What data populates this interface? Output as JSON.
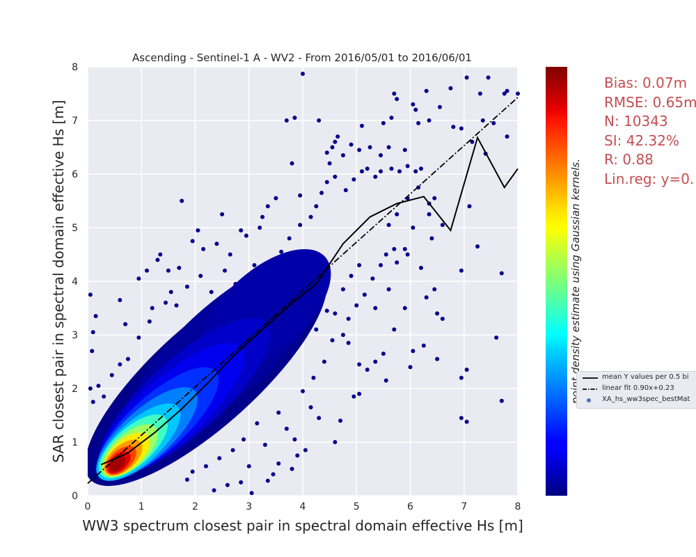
{
  "chart_data": {
    "type": "scatter",
    "title": "Ascending - Sentinel-1 A - WV2 - From 2016/05/01 to 2016/06/01",
    "xlabel": "WW3 spectrum closest pair in spectral domain effective Hs [m]",
    "ylabel": "SAR closest pair in spectral domain effective Hs [m]",
    "xlim": [
      0,
      8
    ],
    "ylim": [
      0,
      8
    ],
    "xticks": [
      "0",
      "1",
      "2",
      "3",
      "4",
      "5",
      "6",
      "7",
      "8"
    ],
    "yticks": [
      "0",
      "1",
      "2",
      "3",
      "4",
      "5",
      "6",
      "7",
      "8"
    ],
    "grid": true,
    "colorbar_label": "point density estimate using Gaussian kernels.",
    "colormap": "jet",
    "stats": [
      "Bias: 0.07m",
      "RMSE: 0.65m",
      "N: 10343",
      "SI: 42.32%",
      "R: 0.88",
      "Lin.reg: y=0."
    ],
    "legend": {
      "placement": "right, outside",
      "entries": [
        "mean Y values per 0.5 bi",
        "linear fit 0.90x+0.23",
        "XA_hs_ww3spec_bestMat"
      ]
    },
    "mean_line": {
      "x": [
        0.25,
        0.75,
        1.25,
        1.75,
        2.25,
        2.75,
        3.25,
        3.75,
        4.25,
        4.75,
        5.25,
        5.75,
        6.25,
        6.75,
        7.25,
        7.75,
        8.0
      ],
      "y": [
        0.58,
        0.8,
        1.18,
        1.62,
        2.12,
        2.65,
        3.1,
        3.55,
        3.95,
        4.7,
        5.2,
        5.45,
        5.58,
        4.95,
        6.68,
        5.75,
        6.1
      ]
    },
    "linear_fit": {
      "slope": 0.9,
      "intercept": 0.23
    },
    "outliers": [
      [
        0.05,
        3.75
      ],
      [
        0.1,
        3.05
      ],
      [
        0.15,
        3.35
      ],
      [
        0.08,
        2.7
      ],
      [
        0.6,
        3.65
      ],
      [
        0.7,
        3.2
      ],
      [
        0.95,
        4.05
      ],
      [
        1.1,
        4.2
      ],
      [
        1.3,
        4.4
      ],
      [
        1.35,
        4.5
      ],
      [
        1.5,
        4.2
      ],
      [
        1.7,
        4.25
      ],
      [
        1.75,
        5.5
      ],
      [
        1.95,
        4.75
      ],
      [
        2.05,
        4.95
      ],
      [
        2.15,
        4.6
      ],
      [
        2.4,
        4.7
      ],
      [
        2.5,
        5.25
      ],
      [
        2.65,
        4.5
      ],
      [
        2.85,
        4.95
      ],
      [
        2.95,
        4.85
      ],
      [
        3.2,
        5.0
      ],
      [
        3.25,
        5.2
      ],
      [
        3.35,
        5.4
      ],
      [
        3.5,
        5.55
      ],
      [
        3.7,
        7.0
      ],
      [
        3.85,
        7.05
      ],
      [
        3.8,
        6.2
      ],
      [
        3.95,
        5.6
      ],
      [
        4.0,
        7.87
      ],
      [
        4.3,
        7.0
      ],
      [
        4.45,
        6.4
      ],
      [
        4.5,
        6.2
      ],
      [
        4.55,
        6.5
      ],
      [
        4.6,
        6.6
      ],
      [
        4.65,
        6.7
      ],
      [
        4.75,
        6.35
      ],
      [
        4.9,
        6.55
      ],
      [
        5.05,
        6.45
      ],
      [
        5.1,
        6.9
      ],
      [
        5.25,
        6.5
      ],
      [
        5.45,
        6.35
      ],
      [
        5.5,
        6.95
      ],
      [
        5.6,
        6.5
      ],
      [
        5.65,
        7.05
      ],
      [
        5.7,
        7.5
      ],
      [
        5.75,
        7.4
      ],
      [
        5.9,
        6.45
      ],
      [
        6.05,
        7.3
      ],
      [
        6.1,
        7.2
      ],
      [
        6.15,
        6.95
      ],
      [
        6.3,
        7.55
      ],
      [
        6.35,
        7.0
      ],
      [
        6.55,
        7.25
      ],
      [
        6.75,
        7.6
      ],
      [
        6.8,
        6.88
      ],
      [
        6.95,
        6.85
      ],
      [
        7.05,
        7.8
      ],
      [
        7.15,
        6.6
      ],
      [
        7.3,
        7.5
      ],
      [
        7.35,
        7.0
      ],
      [
        7.45,
        7.8
      ],
      [
        7.55,
        6.95
      ],
      [
        7.75,
        7.5
      ],
      [
        7.8,
        7.55
      ],
      [
        8.0,
        7.5
      ],
      [
        7.8,
        6.7
      ],
      [
        7.4,
        6.38
      ],
      [
        7.1,
        5.4
      ],
      [
        7.25,
        4.65
      ],
      [
        6.95,
        4.2
      ],
      [
        7.7,
        4.15
      ],
      [
        7.6,
        2.95
      ],
      [
        7.7,
        1.77
      ],
      [
        6.95,
        2.2
      ],
      [
        7.05,
        2.35
      ],
      [
        6.95,
        1.45
      ],
      [
        7.05,
        1.38
      ],
      [
        6.2,
        4.25
      ],
      [
        6.3,
        3.7
      ],
      [
        6.45,
        3.85
      ],
      [
        6.5,
        3.4
      ],
      [
        6.6,
        3.3
      ],
      [
        6.5,
        2.55
      ],
      [
        6.25,
        2.8
      ],
      [
        6.05,
        2.7
      ],
      [
        6.0,
        2.4
      ],
      [
        5.7,
        3.1
      ],
      [
        5.9,
        3.5
      ],
      [
        5.95,
        4.5
      ],
      [
        5.6,
        3.85
      ],
      [
        5.5,
        2.65
      ],
      [
        5.55,
        2.15
      ],
      [
        5.35,
        3.5
      ],
      [
        5.2,
        2.35
      ],
      [
        5.35,
        2.5
      ],
      [
        5.05,
        2.45
      ],
      [
        5.05,
        1.9
      ],
      [
        4.95,
        1.85
      ],
      [
        4.7,
        1.4
      ],
      [
        4.6,
        1.0
      ],
      [
        4.85,
        2.85
      ],
      [
        4.75,
        3.0
      ],
      [
        4.55,
        2.9
      ],
      [
        4.3,
        1.45
      ],
      [
        4.15,
        1.65
      ],
      [
        4.0,
        1.95
      ],
      [
        4.05,
        0.85
      ],
      [
        3.9,
        0.75
      ],
      [
        3.8,
        0.5
      ],
      [
        3.85,
        1.05
      ],
      [
        3.55,
        0.6
      ],
      [
        3.45,
        0.4
      ],
      [
        3.35,
        0.28
      ],
      [
        3.05,
        0.05
      ],
      [
        3.0,
        0.55
      ],
      [
        2.85,
        0.25
      ],
      [
        2.6,
        0.2
      ],
      [
        2.35,
        0.1
      ],
      [
        0.45,
        2.25
      ],
      [
        0.6,
        2.45
      ],
      [
        0.75,
        2.55
      ],
      [
        0.95,
        2.95
      ],
      [
        1.15,
        3.25
      ],
      [
        1.2,
        3.5
      ],
      [
        1.45,
        3.6
      ],
      [
        1.55,
        3.8
      ],
      [
        1.65,
        3.55
      ],
      [
        1.85,
        3.9
      ],
      [
        2.1,
        4.1
      ],
      [
        2.3,
        3.8
      ],
      [
        2.55,
        4.2
      ],
      [
        2.75,
        3.95
      ],
      [
        3.1,
        4.3
      ],
      [
        3.3,
        4.1
      ],
      [
        3.6,
        4.55
      ],
      [
        3.75,
        4.8
      ],
      [
        3.95,
        5.05
      ],
      [
        4.15,
        5.2
      ],
      [
        4.25,
        5.4
      ],
      [
        4.35,
        5.65
      ],
      [
        4.45,
        5.85
      ],
      [
        4.6,
        5.95
      ],
      [
        4.8,
        5.7
      ],
      [
        4.95,
        5.9
      ],
      [
        5.1,
        6.05
      ],
      [
        5.2,
        6.1
      ],
      [
        5.35,
        5.95
      ],
      [
        5.45,
        6.05
      ],
      [
        5.65,
        6.1
      ],
      [
        5.8,
        6.05
      ],
      [
        5.95,
        6.15
      ],
      [
        6.1,
        6.05
      ],
      [
        6.2,
        6.1
      ],
      [
        6.15,
        5.75
      ],
      [
        5.95,
        5.55
      ],
      [
        5.75,
        5.25
      ],
      [
        5.6,
        5.05
      ],
      [
        6.35,
        5.25
      ],
      [
        6.45,
        5.55
      ],
      [
        6.35,
        5.45
      ],
      [
        6.05,
        5.0
      ],
      [
        5.9,
        4.6
      ],
      [
        5.75,
        4.35
      ],
      [
        6.4,
        4.8
      ],
      [
        6.6,
        5.05
      ],
      [
        0.2,
        2.05
      ],
      [
        0.3,
        1.85
      ],
      [
        0.1,
        1.75
      ],
      [
        0.05,
        2.0
      ],
      [
        2.9,
        1.05
      ],
      [
        3.15,
        1.35
      ],
      [
        3.3,
        0.95
      ],
      [
        3.55,
        1.55
      ],
      [
        3.7,
        1.25
      ],
      [
        4.2,
        2.2
      ],
      [
        4.4,
        2.5
      ],
      [
        4.25,
        3.1
      ],
      [
        4.45,
        3.45
      ],
      [
        4.6,
        3.4
      ],
      [
        4.85,
        3.3
      ],
      [
        5.0,
        3.55
      ],
      [
        5.15,
        3.75
      ],
      [
        5.3,
        4.05
      ],
      [
        5.45,
        4.3
      ],
      [
        5.55,
        4.5
      ],
      [
        5.7,
        4.6
      ],
      [
        5.05,
        4.3
      ],
      [
        4.9,
        4.1
      ],
      [
        4.75,
        3.85
      ],
      [
        2.2,
        0.55
      ],
      [
        2.45,
        0.7
      ],
      [
        2.7,
        0.85
      ],
      [
        1.85,
        0.3
      ],
      [
        1.95,
        0.45
      ]
    ]
  }
}
